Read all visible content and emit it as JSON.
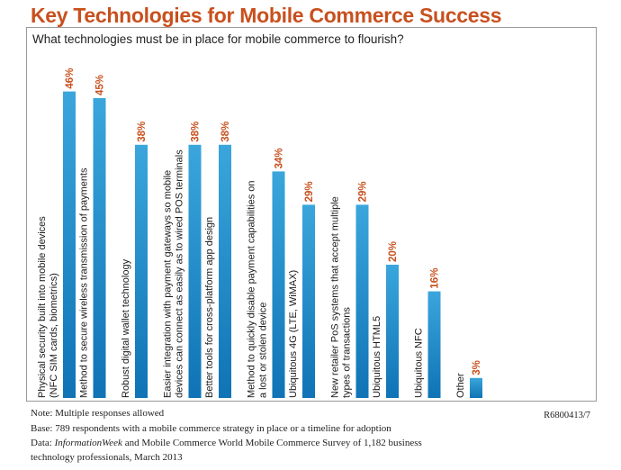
{
  "colors": {
    "title": "#c8501e",
    "value_label": "#c8501e",
    "bar_top": "#3aa6dc",
    "bar_bottom": "#0f73b5",
    "axis": "#8a8a8a"
  },
  "chart_data": {
    "type": "bar",
    "orientation": "vertical",
    "title": "Key Technologies for Mobile Commerce Success",
    "subtitle": "What technologies must be in place for mobile commerce to flourish?",
    "unit": "%",
    "ylim": [
      0,
      50
    ],
    "grid": false,
    "categories": [
      [
        "Physical security built into mobile devices",
        "(NFC SIM cards, biometrics)"
      ],
      [
        "Method to secure wireless transmission of payments"
      ],
      [
        "Robust digital wallet technology"
      ],
      [
        "Easier integration with payment gateways so mobile",
        "devices can connect as easily as to wired POS terminals"
      ],
      [
        "Better tools for cross-platform app design"
      ],
      [
        "Method to quickly disable payment capabilities on",
        "a lost or stolen device"
      ],
      [
        "Ubiquitous 4G (LTE, WiMAX)"
      ],
      [
        "New retailer PoS systems that accept multiple",
        "types of transactions"
      ],
      [
        "Ubiquitous HTML5"
      ],
      [
        "Ubiquitous NFC"
      ],
      [
        "Other"
      ]
    ],
    "values": [
      46,
      45,
      38,
      38,
      38,
      34,
      29,
      29,
      20,
      16,
      3
    ]
  },
  "notes": {
    "note": "Note: Multiple responses allowed",
    "base": "Base: 789 respondents with a mobile commerce strategy in place or a timeline for adoption",
    "data_prefix": "Data: ",
    "data_source_italic": "InformationWeek",
    "data_rest": " and Mobile Commerce World Mobile Commerce Survey of 1,182 business",
    "data_line2": "technology professionals, March 2013",
    "code": "R6800413/7"
  }
}
